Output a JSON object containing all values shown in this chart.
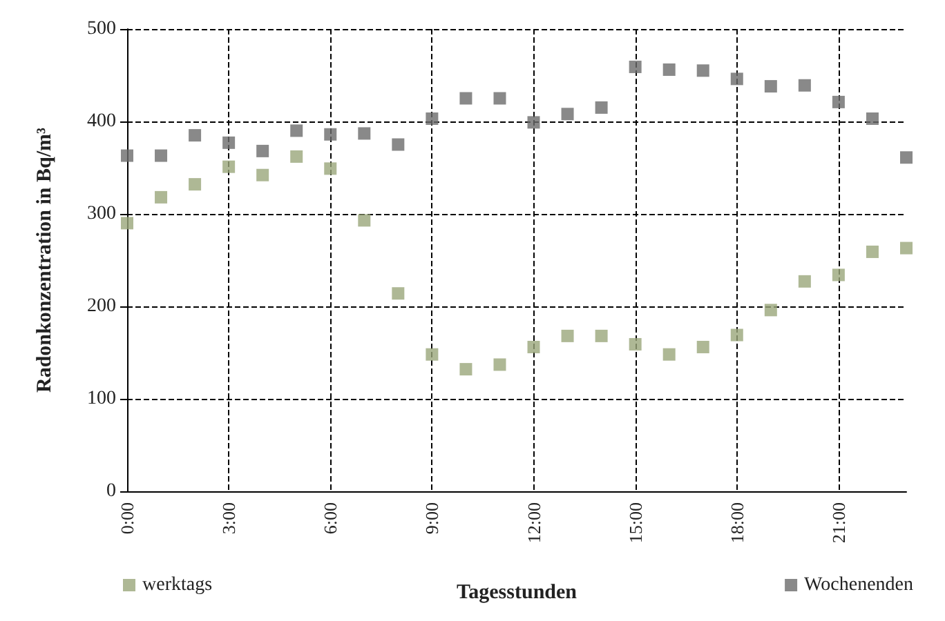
{
  "chart_data": {
    "type": "scatter",
    "xlabel": "Tagesstunden",
    "ylabel": "Radonkonzentration in Bq/m³",
    "categories": [
      "0:00",
      null,
      null,
      "3:00",
      null,
      null,
      "6:00",
      null,
      null,
      "9:00",
      null,
      null,
      "12:00",
      null,
      null,
      "15:00",
      null,
      null,
      "18:00",
      null,
      null,
      "21:00",
      null,
      null
    ],
    "series": [
      {
        "name": "werktags",
        "color": "#9aa67a",
        "values": [
          290,
          318,
          332,
          351,
          342,
          362,
          349,
          293,
          214,
          148,
          132,
          137,
          156,
          168,
          168,
          159,
          148,
          156,
          169,
          196,
          227,
          234,
          259,
          263
        ]
      },
      {
        "name": "Wochenenden",
        "color": "#6b6b6b",
        "values": [
          363,
          363,
          385,
          377,
          368,
          390,
          386,
          387,
          375,
          403,
          425,
          425,
          399,
          408,
          415,
          459,
          456,
          455,
          446,
          438,
          439,
          421,
          403,
          361
        ]
      }
    ],
    "ylim": [
      0,
      500
    ],
    "yticks": [
      0,
      100,
      200,
      300,
      400,
      500
    ],
    "grid": true,
    "legend": "bottom",
    "marker": "square"
  }
}
